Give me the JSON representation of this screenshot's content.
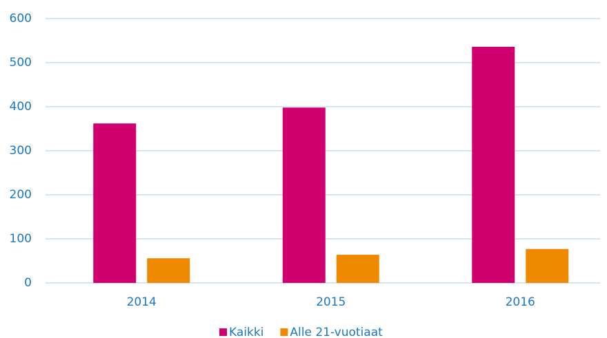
{
  "chart_data": {
    "type": "bar",
    "categories": [
      "2014",
      "2015",
      "2016"
    ],
    "series": [
      {
        "name": "Kaikki",
        "color": "#d1006f",
        "values": [
          362,
          398,
          536
        ]
      },
      {
        "name": "Alle 21-vuotiaat",
        "color": "#ef8a00",
        "values": [
          56,
          64,
          77
        ]
      }
    ],
    "ylim": [
      0,
      600
    ],
    "yticks": [
      0,
      100,
      200,
      300,
      400,
      500,
      600
    ],
    "grid": true,
    "legend": "bottom"
  }
}
